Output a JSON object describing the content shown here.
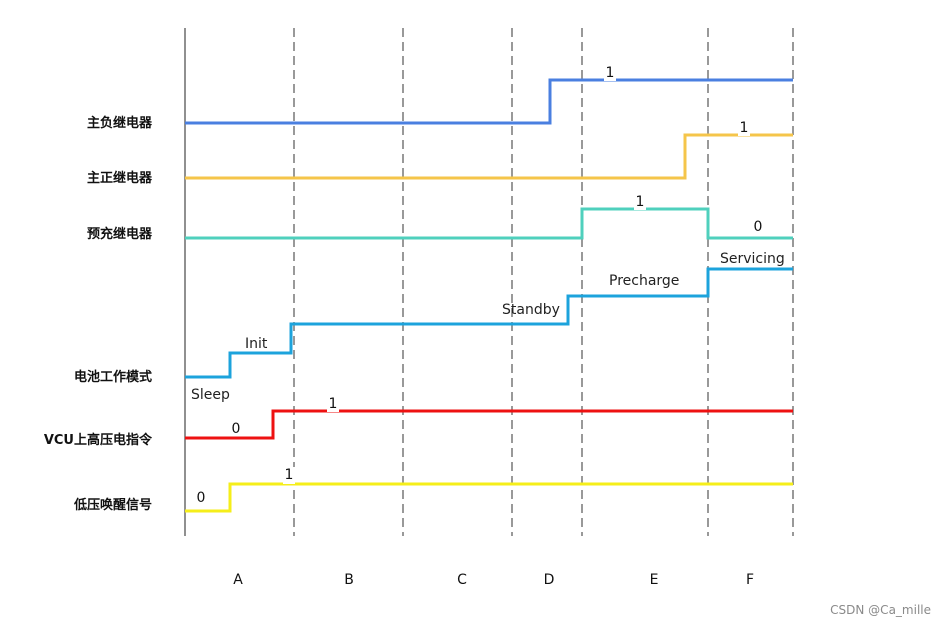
{
  "signals": [
    {
      "id": "main-negative-relay",
      "label": "主负继电器",
      "color": "#4a7fe0",
      "values": [
        {
          "text": "1",
          "seg": 1
        }
      ]
    },
    {
      "id": "main-positive-relay",
      "label": "主正继电器",
      "color": "#f5c54a",
      "values": [
        {
          "text": "1",
          "seg": 1
        }
      ]
    },
    {
      "id": "precharge-relay",
      "label": "预充继电器",
      "color": "#4fd0bd",
      "values": [
        {
          "text": "1",
          "seg": 1
        },
        {
          "text": "0",
          "seg": 2
        }
      ]
    },
    {
      "id": "battery-mode",
      "label": "电池工作模式",
      "color": "#1ca3dc",
      "modes": [
        "Sleep",
        "Init",
        "Standby",
        "Precharge",
        "Servicing"
      ]
    },
    {
      "id": "vcu-hv-command",
      "label": "VCU上高压电指令",
      "color": "#ee1111",
      "values": [
        {
          "text": "0",
          "seg": 0
        },
        {
          "text": "1",
          "seg": 1
        }
      ]
    },
    {
      "id": "lv-wakeup",
      "label": "低压唤醒信号",
      "color": "#f5ee1a",
      "values": [
        {
          "text": "0",
          "seg": 0
        },
        {
          "text": "1",
          "seg": 1
        }
      ]
    }
  ],
  "phases": [
    "A",
    "B",
    "C",
    "D",
    "E",
    "F"
  ],
  "watermark": "CSDN @Ca_mille"
}
